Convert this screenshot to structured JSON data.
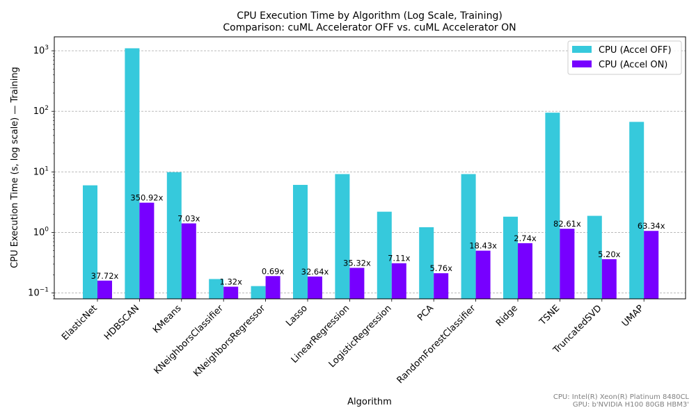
{
  "chart_data": {
    "type": "bar",
    "title": "CPU Execution Time by Algorithm (Log Scale, Training)",
    "subtitle": "Comparison: cuML Accelerator OFF vs. cuML Accelerator ON",
    "xlabel": "Algorithm",
    "ylabel": "CPU Execution Time (s, log scale) — Training",
    "yscale": "log",
    "ylim": [
      0.08,
      1700
    ],
    "yticks": [
      {
        "value": 0.1,
        "base": "10",
        "exp": "−1"
      },
      {
        "value": 1,
        "base": "10",
        "exp": "0"
      },
      {
        "value": 10,
        "base": "10",
        "exp": "1"
      },
      {
        "value": 100,
        "base": "10",
        "exp": "2"
      },
      {
        "value": 1000,
        "base": "10",
        "exp": "3"
      }
    ],
    "grid": "y-major-dashed",
    "legend_position": "top-right",
    "categories": [
      "ElasticNet",
      "HDBSCAN",
      "KMeans",
      "KNeighborsClassifier",
      "KNeighborsRegressor",
      "Lasso",
      "LinearRegression",
      "LogisticRegression",
      "PCA",
      "RandomForestClassifier",
      "Ridge",
      "TSNE",
      "TruncatedSVD",
      "UMAP"
    ],
    "series": [
      {
        "name": "CPU (Accel OFF)",
        "color": "#36c9dc",
        "values": [
          6.0,
          1100,
          9.9,
          0.17,
          0.13,
          6.1,
          9.2,
          2.2,
          1.22,
          9.2,
          1.82,
          95,
          1.88,
          67
        ]
      },
      {
        "name": "CPU (Accel ON)",
        "color": "#7700ff",
        "values": [
          0.16,
          3.1,
          1.41,
          0.127,
          0.19,
          0.187,
          0.26,
          0.31,
          0.212,
          0.5,
          0.665,
          1.15,
          0.362,
          1.06
        ]
      }
    ],
    "annotations": [
      "37.72x",
      "350.92x",
      "7.03x",
      "1.32x",
      "0.69x",
      "32.64x",
      "35.32x",
      "7.11x",
      "5.76x",
      "18.43x",
      "2.74x",
      "82.61x",
      "5.20x",
      "63.34x"
    ]
  },
  "footnote": {
    "cpu": "CPU: Intel(R) Xeon(R) Platinum 8480CL",
    "gpu": "GPU: b'NVIDIA H100 80GB HBM3'"
  }
}
